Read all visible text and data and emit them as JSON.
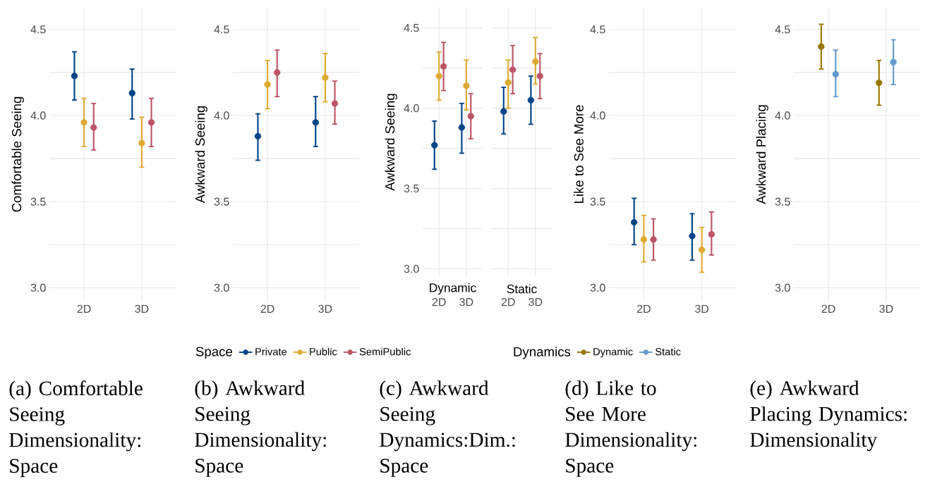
{
  "chart_data": [
    {
      "type": "scatter",
      "categories": [
        "2D",
        "3D"
      ],
      "ylabel": "Comfortable Seeing",
      "ylim": [
        2.92,
        4.63
      ],
      "yticks": [
        {
          "value": 3,
          "label": "3.0"
        },
        {
          "value": 3.25,
          "label": null
        },
        {
          "value": 3.5,
          "label": "3.5"
        },
        {
          "value": 3.75,
          "label": null
        },
        {
          "value": 4,
          "label": "4.0"
        },
        {
          "value": 4.25,
          "label": null
        },
        {
          "value": 4.5,
          "label": "4.5"
        }
      ],
      "grid": true,
      "marker": "circle",
      "series": [
        {
          "color": "#004488",
          "values": [
            4.23,
            4.13
          ],
          "errors": [
            [
              4.09,
              4.37
            ],
            [
              3.98,
              4.27
            ]
          ]
        },
        {
          "color": "#ddaa33",
          "values": [
            3.96,
            3.84
          ],
          "errors": [
            [
              3.82,
              4.1
            ],
            [
              3.7,
              3.99
            ]
          ]
        },
        {
          "color": "#bb5566",
          "values": [
            3.93,
            3.96
          ],
          "errors": [
            [
              3.8,
              4.07
            ],
            [
              3.82,
              4.1
            ]
          ]
        }
      ],
      "annotations": [
        "(a) Comfortable Seeing Dimensionality: Space"
      ]
    },
    {
      "type": "scatter",
      "categories": [
        "2D",
        "3D"
      ],
      "ylabel": "Awkward Seeing",
      "ylim": [
        2.92,
        4.63
      ],
      "yticks": [
        {
          "value": 3,
          "label": "3.0"
        },
        {
          "value": 3.25,
          "label": null
        },
        {
          "value": 3.5,
          "label": "3.5"
        },
        {
          "value": 3.75,
          "label": null
        },
        {
          "value": 4,
          "label": "4.0"
        },
        {
          "value": 4.25,
          "label": null
        },
        {
          "value": 4.5,
          "label": "4.5"
        }
      ],
      "grid": true,
      "marker": "circle",
      "legend": "bottom",
      "legend_title": "Space",
      "series": [
        {
          "name": "Private",
          "color": "#004488",
          "values": [
            3.88,
            3.96
          ],
          "errors": [
            [
              3.74,
              4.01
            ],
            [
              3.82,
              4.11
            ]
          ]
        },
        {
          "name": "Public",
          "color": "#ddaa33",
          "values": [
            4.18,
            4.22
          ],
          "errors": [
            [
              4.04,
              4.32
            ],
            [
              4.08,
              4.36
            ]
          ]
        },
        {
          "name": "SemiPublic",
          "color": "#bb5566",
          "values": [
            4.25,
            4.07
          ],
          "errors": [
            [
              4.11,
              4.38
            ],
            [
              3.95,
              4.2
            ]
          ]
        }
      ],
      "annotations": [
        "(b) Awkward Seeing Dimensionality: Space"
      ]
    },
    {
      "type": "scatter",
      "title": "Dynamic",
      "categories": [
        "2D",
        "3D"
      ],
      "ylabel": "Awkward Seeing",
      "ylim": [
        2.95,
        4.63
      ],
      "yticks": [
        {
          "value": 3,
          "label": "3.0"
        },
        {
          "value": 3.25,
          "label": null
        },
        {
          "value": 3.5,
          "label": "3.5"
        },
        {
          "value": 3.75,
          "label": null
        },
        {
          "value": 4,
          "label": "4.0"
        },
        {
          "value": 4.25,
          "label": null
        },
        {
          "value": 4.5,
          "label": "4.5"
        }
      ],
      "grid": true,
      "marker": "circle",
      "series": [
        {
          "color": "#004488",
          "values": [
            3.77,
            3.88
          ],
          "errors": [
            [
              3.62,
              3.92
            ],
            [
              3.72,
              4.03
            ]
          ]
        },
        {
          "color": "#ddaa33",
          "values": [
            4.2,
            4.14
          ],
          "errors": [
            [
              4.05,
              4.35
            ],
            [
              3.99,
              4.3
            ]
          ]
        },
        {
          "color": "#bb5566",
          "values": [
            4.26,
            3.95
          ],
          "errors": [
            [
              4.11,
              4.41
            ],
            [
              3.81,
              4.09
            ]
          ]
        }
      ],
      "annotations": [
        "(c) Awkward Seeing Dynamics:Dim.: Space"
      ]
    },
    {
      "type": "scatter",
      "title": "Static",
      "categories": [
        "2D",
        "3D"
      ],
      "ylim": [
        2.95,
        4.63
      ],
      "yticks": [
        {
          "value": 3,
          "label": null
        },
        {
          "value": 3.25,
          "label": null
        },
        {
          "value": 3.5,
          "label": null
        },
        {
          "value": 3.75,
          "label": null
        },
        {
          "value": 4,
          "label": null
        },
        {
          "value": 4.25,
          "label": null
        },
        {
          "value": 4.5,
          "label": null
        }
      ],
      "grid": true,
      "marker": "circle",
      "tick_labels": "x",
      "series": [
        {
          "color": "#004488",
          "values": [
            3.98,
            4.05
          ],
          "errors": [
            [
              3.84,
              4.13
            ],
            [
              3.9,
              4.2
            ]
          ]
        },
        {
          "color": "#ddaa33",
          "values": [
            4.16,
            4.29
          ],
          "errors": [
            [
              4.0,
              4.3
            ],
            [
              4.15,
              4.44
            ]
          ]
        },
        {
          "color": "#bb5566",
          "values": [
            4.24,
            4.2
          ],
          "errors": [
            [
              4.09,
              4.39
            ],
            [
              4.06,
              4.34
            ]
          ]
        }
      ]
    },
    {
      "type": "scatter",
      "categories": [
        "2D",
        "3D"
      ],
      "ylabel": "Like to See More",
      "ylim": [
        2.92,
        4.63
      ],
      "yticks": [
        {
          "value": 3,
          "label": "3.0"
        },
        {
          "value": 3.25,
          "label": null
        },
        {
          "value": 3.5,
          "label": "3.5"
        },
        {
          "value": 3.75,
          "label": null
        },
        {
          "value": 4,
          "label": "4.0"
        },
        {
          "value": 4.25,
          "label": null
        },
        {
          "value": 4.5,
          "label": "4.5"
        }
      ],
      "grid": true,
      "marker": "circle",
      "series": [
        {
          "color": "#004488",
          "values": [
            3.38,
            3.3
          ],
          "errors": [
            [
              3.25,
              3.52
            ],
            [
              3.16,
              3.43
            ]
          ]
        },
        {
          "color": "#ddaa33",
          "values": [
            3.28,
            3.22
          ],
          "errors": [
            [
              3.15,
              3.42
            ],
            [
              3.09,
              3.35
            ]
          ]
        },
        {
          "color": "#bb5566",
          "values": [
            3.28,
            3.31
          ],
          "errors": [
            [
              3.16,
              3.4
            ],
            [
              3.19,
              3.44
            ]
          ]
        }
      ],
      "annotations": [
        "(d) Like to See More Dimensionality: Space"
      ]
    },
    {
      "type": "scatter",
      "categories": [
        "2D",
        "3D"
      ],
      "ylabel": "Awkward Placing",
      "ylim": [
        2.92,
        4.63
      ],
      "yticks": [
        {
          "value": 3,
          "label": "3.0"
        },
        {
          "value": 3.25,
          "label": null
        },
        {
          "value": 3.5,
          "label": "3.5"
        },
        {
          "value": 3.75,
          "label": null
        },
        {
          "value": 4,
          "label": "4.0"
        },
        {
          "value": 4.25,
          "label": null
        },
        {
          "value": 4.5,
          "label": "4.5"
        }
      ],
      "grid": true,
      "marker": "circle",
      "legend": "bottom",
      "legend_title": "Dynamics",
      "series": [
        {
          "name": "Dynamic",
          "color": "#997700",
          "values": [
            4.4,
            4.19
          ],
          "errors": [
            [
              4.27,
              4.53
            ],
            [
              4.06,
              4.32
            ]
          ]
        },
        {
          "name": "Static",
          "color": "#6699cc",
          "values": [
            4.24,
            4.31
          ],
          "errors": [
            [
              4.11,
              4.38
            ],
            [
              4.18,
              4.44
            ]
          ]
        }
      ],
      "annotations": [
        "(e) Awkward Placing Dynamics: Dimensionality"
      ]
    }
  ]
}
